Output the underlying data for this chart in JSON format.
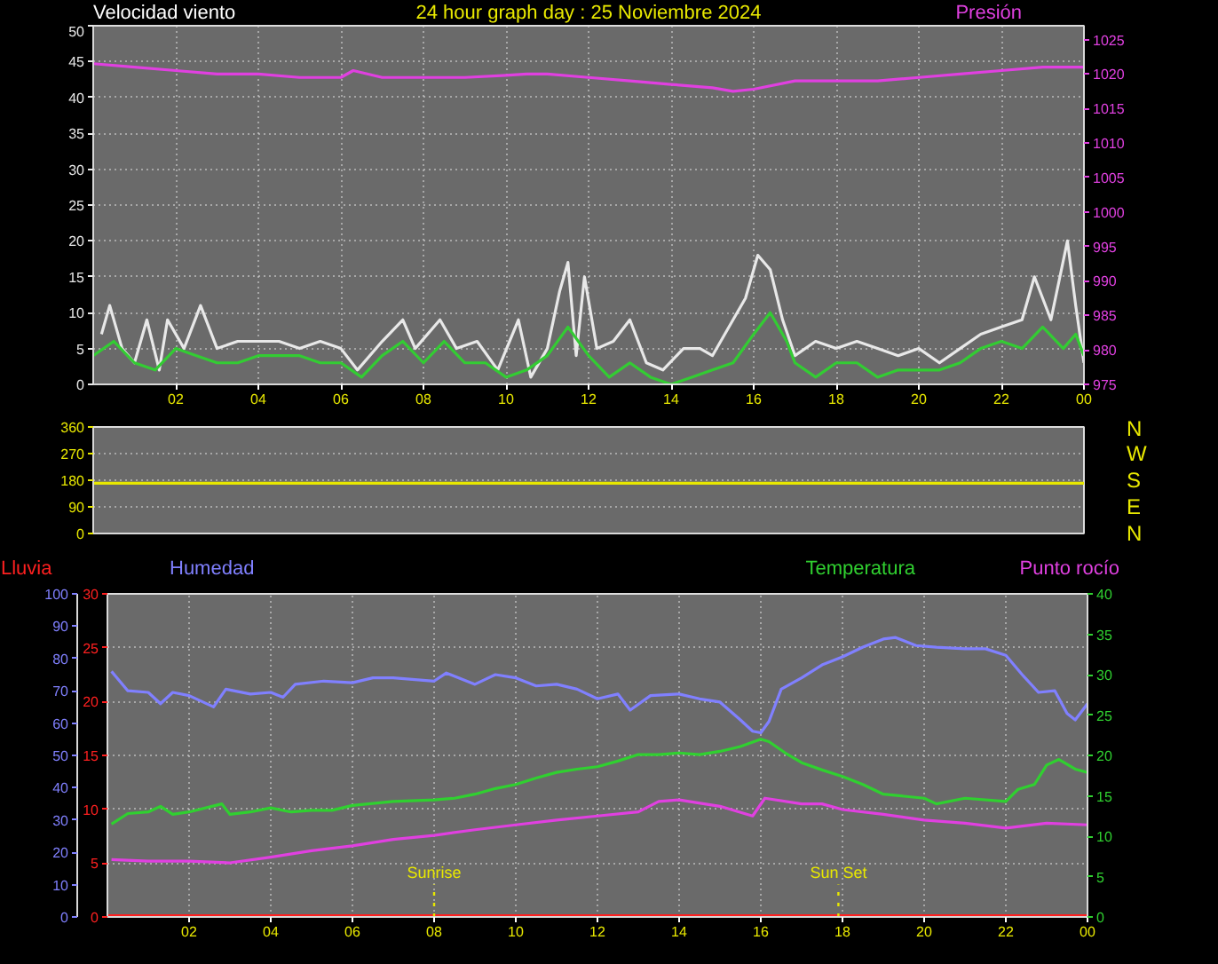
{
  "chart_data": [
    {
      "type": "line",
      "title": "24 hour graph day : 25 Noviembre 2024",
      "ylabel": "Velocidad viento",
      "y2label": "Presión",
      "xlim": [
        "2024-11-25T00:00",
        "2024-11-26T00:00"
      ],
      "xticks": [
        {
          "value": "2024-11-25T02:00",
          "label": "02"
        },
        {
          "value": "2024-11-25T04:00",
          "label": "04"
        },
        {
          "value": "2024-11-25T06:00",
          "label": "06"
        },
        {
          "value": "2024-11-25T08:00",
          "label": "08"
        },
        {
          "value": "2024-11-25T10:00",
          "label": "10"
        },
        {
          "value": "2024-11-25T12:00",
          "label": "12"
        },
        {
          "value": "2024-11-25T14:00",
          "label": "14"
        },
        {
          "value": "2024-11-25T16:00",
          "label": "16"
        },
        {
          "value": "2024-11-25T18:00",
          "label": "18"
        },
        {
          "value": "2024-11-25T20:00",
          "label": "20"
        },
        {
          "value": "2024-11-25T22:00",
          "label": "22"
        },
        {
          "value": "2024-11-26T00:00",
          "label": "00"
        }
      ],
      "ylim": [
        0,
        50
      ],
      "yticks": [
        0,
        5,
        10,
        15,
        20,
        25,
        30,
        35,
        40,
        45,
        50
      ],
      "y2lim": [
        975,
        1027
      ],
      "y2ticks": [
        975,
        980,
        985,
        990,
        995,
        1000,
        1005,
        1010,
        1015,
        1020,
        1025
      ],
      "grid": true,
      "series": [
        {
          "color": "#e8e8e8",
          "x": [
            "2024-11-25T00:12",
            "2024-11-25T00:24",
            "2024-11-25T00:42",
            "2024-11-25T01:00",
            "2024-11-25T01:18",
            "2024-11-25T01:36",
            "2024-11-25T01:48",
            "2024-11-25T02:12",
            "2024-11-25T02:36",
            "2024-11-25T03:00",
            "2024-11-25T03:30",
            "2024-11-25T04:00",
            "2024-11-25T04:30",
            "2024-11-25T05:00",
            "2024-11-25T05:30",
            "2024-11-25T06:00",
            "2024-11-25T06:24",
            "2024-11-25T07:00",
            "2024-11-25T07:30",
            "2024-11-25T07:48",
            "2024-11-25T08:24",
            "2024-11-25T08:48",
            "2024-11-25T09:18",
            "2024-11-25T09:48",
            "2024-11-25T10:18",
            "2024-11-25T10:36",
            "2024-11-25T11:00",
            "2024-11-25T11:18",
            "2024-11-25T11:30",
            "2024-11-25T11:42",
            "2024-11-25T11:54",
            "2024-11-25T12:12",
            "2024-11-25T12:36",
            "2024-11-25T13:00",
            "2024-11-25T13:24",
            "2024-11-25T13:48",
            "2024-11-25T14:18",
            "2024-11-25T14:42",
            "2024-11-25T15:00",
            "2024-11-25T15:30",
            "2024-11-25T15:48",
            "2024-11-25T16:06",
            "2024-11-25T16:24",
            "2024-11-25T16:42",
            "2024-11-25T17:00",
            "2024-11-25T17:30",
            "2024-11-25T18:00",
            "2024-11-25T18:30",
            "2024-11-25T19:00",
            "2024-11-25T19:30",
            "2024-11-25T20:00",
            "2024-11-25T20:30",
            "2024-11-25T21:00",
            "2024-11-25T21:30",
            "2024-11-25T22:00",
            "2024-11-25T22:30",
            "2024-11-25T22:48",
            "2024-11-25T23:12",
            "2024-11-25T23:36",
            "2024-11-25T23:48",
            "2024-11-26T00:00"
          ],
          "values": [
            7,
            11,
            5,
            3,
            9,
            2,
            9,
            5,
            11,
            5,
            6,
            6,
            6,
            5,
            6,
            5,
            2,
            6,
            9,
            5,
            9,
            5,
            6,
            2,
            9,
            1,
            5,
            13,
            17,
            4,
            15,
            5,
            6,
            9,
            3,
            2,
            5,
            5,
            4,
            9,
            12,
            18,
            16,
            9,
            4,
            6,
            5,
            6,
            5,
            4,
            5,
            3,
            5,
            7,
            8,
            9,
            15,
            9,
            20,
            11,
            3
          ]
        },
        {
          "color": "#33cc33",
          "x": [
            "2024-11-25T00:00",
            "2024-11-25T00:30",
            "2024-11-25T01:00",
            "2024-11-25T01:30",
            "2024-11-25T02:00",
            "2024-11-25T02:30",
            "2024-11-25T03:00",
            "2024-11-25T03:30",
            "2024-11-25T04:00",
            "2024-11-25T05:00",
            "2024-11-25T05:30",
            "2024-11-25T06:00",
            "2024-11-25T06:30",
            "2024-11-25T07:00",
            "2024-11-25T07:30",
            "2024-11-25T08:00",
            "2024-11-25T08:30",
            "2024-11-25T09:00",
            "2024-11-25T09:30",
            "2024-11-25T10:00",
            "2024-11-25T10:30",
            "2024-11-25T11:00",
            "2024-11-25T11:30",
            "2024-11-25T12:00",
            "2024-11-25T12:30",
            "2024-11-25T13:00",
            "2024-11-25T13:30",
            "2024-11-25T14:00",
            "2024-11-25T14:30",
            "2024-11-25T15:00",
            "2024-11-25T15:30",
            "2024-11-25T16:00",
            "2024-11-25T16:24",
            "2024-11-25T16:48",
            "2024-11-25T17:00",
            "2024-11-25T17:30",
            "2024-11-25T18:00",
            "2024-11-25T18:30",
            "2024-11-25T19:00",
            "2024-11-25T19:30",
            "2024-11-25T20:00",
            "2024-11-25T20:30",
            "2024-11-25T21:00",
            "2024-11-25T21:30",
            "2024-11-25T22:00",
            "2024-11-25T22:30",
            "2024-11-25T23:00",
            "2024-11-25T23:30",
            "2024-11-25T23:48",
            "2024-11-26T00:00"
          ],
          "values": [
            4,
            6,
            3,
            2,
            5,
            4,
            3,
            3,
            4,
            4,
            3,
            3,
            1,
            4,
            6,
            3,
            6,
            3,
            3,
            1,
            2,
            4,
            8,
            4,
            1,
            3,
            1,
            0,
            1,
            2,
            3,
            7,
            10,
            6,
            3,
            1,
            3,
            3,
            1,
            2,
            2,
            2,
            3,
            5,
            6,
            5,
            8,
            5,
            7,
            4
          ]
        },
        {
          "color": "#e040e0",
          "axis": "y2",
          "x": [
            "2024-11-25T00:00",
            "2024-11-25T01:00",
            "2024-11-25T02:00",
            "2024-11-25T03:00",
            "2024-11-25T04:00",
            "2024-11-25T05:00",
            "2024-11-25T06:00",
            "2024-11-25T06:18",
            "2024-11-25T07:00",
            "2024-11-25T08:00",
            "2024-11-25T09:00",
            "2024-11-25T10:00",
            "2024-11-25T10:30",
            "2024-11-25T11:00",
            "2024-11-25T12:00",
            "2024-11-25T13:00",
            "2024-11-25T14:00",
            "2024-11-25T15:00",
            "2024-11-25T15:30",
            "2024-11-25T16:00",
            "2024-11-25T17:00",
            "2024-11-25T18:00",
            "2024-11-25T19:00",
            "2024-11-25T20:00",
            "2024-11-25T21:00",
            "2024-11-25T22:00",
            "2024-11-25T23:00",
            "2024-11-26T00:00"
          ],
          "values": [
            1021.5,
            1021,
            1020.5,
            1020,
            1020,
            1019.5,
            1019.5,
            1020.5,
            1019.5,
            1019.5,
            1019.5,
            1019.8,
            1020,
            1020,
            1019.5,
            1019,
            1018.5,
            1018,
            1017.5,
            1017.8,
            1019,
            1019,
            1019,
            1019.5,
            1020,
            1020.5,
            1021,
            1021
          ]
        }
      ]
    },
    {
      "type": "line",
      "xlim": [
        "2024-11-25T00:00",
        "2024-11-26T00:00"
      ],
      "ylim": [
        0,
        360
      ],
      "yticks": [
        0,
        90,
        180,
        270,
        360
      ],
      "annotations": [
        "N",
        "W",
        "S",
        "E",
        "N"
      ],
      "tick_labels": "y",
      "grid": "y",
      "series": [
        {
          "color": "#e8e800",
          "x": [
            "2024-11-25T00:00",
            "2024-11-26T00:00"
          ],
          "values": [
            170,
            170
          ]
        }
      ]
    },
    {
      "type": "line",
      "xlim": [
        "2024-11-25T00:00",
        "2024-11-26T00:00"
      ],
      "xticks": [
        {
          "value": "2024-11-25T02:00",
          "label": "02"
        },
        {
          "value": "2024-11-25T04:00",
          "label": "04"
        },
        {
          "value": "2024-11-25T06:00",
          "label": "06"
        },
        {
          "value": "2024-11-25T08:00",
          "label": "08"
        },
        {
          "value": "2024-11-25T10:00",
          "label": "10"
        },
        {
          "value": "2024-11-25T12:00",
          "label": "12"
        },
        {
          "value": "2024-11-25T14:00",
          "label": "14"
        },
        {
          "value": "2024-11-25T16:00",
          "label": "16"
        },
        {
          "value": "2024-11-25T18:00",
          "label": "18"
        },
        {
          "value": "2024-11-25T20:00",
          "label": "20"
        },
        {
          "value": "2024-11-25T22:00",
          "label": "22"
        },
        {
          "value": "2024-11-26T00:00",
          "label": "00"
        }
      ],
      "ylim": [
        0,
        30
      ],
      "yticks": [
        0,
        5,
        10,
        15,
        20,
        25,
        30
      ],
      "y2lim": [
        0,
        100
      ],
      "y2ticks": [
        0,
        10,
        20,
        30,
        40,
        50,
        60,
        70,
        80,
        90,
        100
      ],
      "y3lim": [
        0,
        40
      ],
      "y3ticks": [
        0,
        5,
        10,
        15,
        20,
        25,
        30,
        35,
        40
      ],
      "grid": true,
      "ref_lines": [
        {
          "axis": "x",
          "value": "2024-11-25T08:00",
          "label": "Sunrise",
          "color": "#e8e800",
          "line_style": "dotted"
        },
        {
          "axis": "x",
          "value": "2024-11-25T17:54",
          "label": "Sun Set",
          "color": "#e8e800",
          "line_style": "dotted"
        }
      ],
      "series": [
        {
          "name": "Lluvia",
          "color": "#ff2020",
          "x": [
            "2024-11-25T00:00",
            "2024-11-26T00:00"
          ],
          "values": [
            0,
            0
          ]
        },
        {
          "name": "Humedad",
          "color": "#8080ff",
          "axis": "y2",
          "x": [
            "2024-11-25T00:06",
            "2024-11-25T00:30",
            "2024-11-25T01:00",
            "2024-11-25T01:18",
            "2024-11-25T01:36",
            "2024-11-25T02:00",
            "2024-11-25T02:36",
            "2024-11-25T02:54",
            "2024-11-25T03:30",
            "2024-11-25T04:00",
            "2024-11-25T04:18",
            "2024-11-25T04:36",
            "2024-11-25T05:18",
            "2024-11-25T06:00",
            "2024-11-25T06:30",
            "2024-11-25T07:00",
            "2024-11-25T08:00",
            "2024-11-25T08:18",
            "2024-11-25T09:00",
            "2024-11-25T09:30",
            "2024-11-25T10:00",
            "2024-11-25T10:30",
            "2024-11-25T11:00",
            "2024-11-25T11:30",
            "2024-11-25T12:00",
            "2024-11-25T12:30",
            "2024-11-25T12:48",
            "2024-11-25T13:18",
            "2024-11-25T14:00",
            "2024-11-25T14:30",
            "2024-11-25T15:00",
            "2024-11-25T15:30",
            "2024-11-25T15:48",
            "2024-11-25T16:00",
            "2024-11-25T16:12",
            "2024-11-25T16:30",
            "2024-11-25T17:00",
            "2024-11-25T17:30",
            "2024-11-25T18:00",
            "2024-11-25T18:30",
            "2024-11-25T19:00",
            "2024-11-25T19:18",
            "2024-11-25T19:48",
            "2024-11-25T20:18",
            "2024-11-25T21:00",
            "2024-11-25T21:30",
            "2024-11-25T22:00",
            "2024-11-25T22:24",
            "2024-11-25T22:48",
            "2024-11-25T23:12",
            "2024-11-25T23:30",
            "2024-11-25T23:42",
            "2024-11-26T00:00"
          ],
          "values": [
            76,
            70,
            69.5,
            66,
            69.5,
            68.5,
            65,
            70.5,
            69,
            69.5,
            68,
            72,
            73,
            72.5,
            74,
            74,
            73,
            75.5,
            72,
            75,
            74,
            71.5,
            72,
            70.5,
            67.5,
            69,
            64,
            68.5,
            69,
            67.5,
            66.5,
            61,
            57.5,
            57,
            60.5,
            70.5,
            74,
            78,
            80.5,
            83.5,
            86,
            86.5,
            84,
            83.5,
            83,
            83,
            81,
            75,
            69.5,
            70,
            63,
            61,
            66
          ]
        },
        {
          "name": "Temperatura",
          "color": "#30d030",
          "axis": "y3",
          "x": [
            "2024-11-25T00:06",
            "2024-11-25T00:30",
            "2024-11-25T01:00",
            "2024-11-25T01:18",
            "2024-11-25T01:36",
            "2024-11-25T02:00",
            "2024-11-25T02:48",
            "2024-11-25T03:00",
            "2024-11-25T03:30",
            "2024-11-25T04:00",
            "2024-11-25T04:30",
            "2024-11-25T05:00",
            "2024-11-25T05:30",
            "2024-11-25T06:00",
            "2024-11-25T07:00",
            "2024-11-25T08:00",
            "2024-11-25T08:30",
            "2024-11-25T09:00",
            "2024-11-25T09:30",
            "2024-11-25T10:00",
            "2024-11-25T10:30",
            "2024-11-25T11:00",
            "2024-11-25T11:30",
            "2024-11-25T12:00",
            "2024-11-25T12:30",
            "2024-11-25T13:00",
            "2024-11-25T13:30",
            "2024-11-25T14:00",
            "2024-11-25T14:30",
            "2024-11-25T15:00",
            "2024-11-25T15:30",
            "2024-11-25T16:00",
            "2024-11-25T16:12",
            "2024-11-25T16:36",
            "2024-11-25T17:00",
            "2024-11-25T17:30",
            "2024-11-25T18:00",
            "2024-11-25T18:30",
            "2024-11-25T19:00",
            "2024-11-25T20:00",
            "2024-11-25T20:18",
            "2024-11-25T21:00",
            "2024-11-25T22:00",
            "2024-11-25T22:18",
            "2024-11-25T22:42",
            "2024-11-25T23:00",
            "2024-11-25T23:18",
            "2024-11-25T23:42",
            "2024-11-26T00:00"
          ],
          "values": [
            11.5,
            12.8,
            13,
            13.7,
            12.7,
            13,
            14,
            12.7,
            13,
            13.5,
            13,
            13.2,
            13.2,
            13.8,
            14.3,
            14.5,
            14.7,
            15.2,
            15.9,
            16.4,
            17.2,
            17.9,
            18.3,
            18.6,
            19.3,
            20.1,
            20.1,
            20.3,
            20.1,
            20.5,
            21.1,
            22,
            21.7,
            20.3,
            19.1,
            18.2,
            17.4,
            16.4,
            15.2,
            14.7,
            14,
            14.7,
            14.3,
            15.8,
            16.4,
            18.8,
            19.5,
            18.3,
            17.9
          ]
        },
        {
          "name": "Punto rocío",
          "color": "#e040e0",
          "axis": "y3",
          "x": [
            "2024-11-25T00:06",
            "2024-11-25T01:00",
            "2024-11-25T02:00",
            "2024-11-25T03:00",
            "2024-11-25T04:00",
            "2024-11-25T05:00",
            "2024-11-25T06:00",
            "2024-11-25T07:00",
            "2024-11-25T08:00",
            "2024-11-25T09:00",
            "2024-11-25T10:00",
            "2024-11-25T11:00",
            "2024-11-25T12:00",
            "2024-11-25T13:00",
            "2024-11-25T13:30",
            "2024-11-25T14:00",
            "2024-11-25T15:00",
            "2024-11-25T15:48",
            "2024-11-25T16:06",
            "2024-11-25T17:00",
            "2024-11-25T17:30",
            "2024-11-25T18:00",
            "2024-11-25T19:00",
            "2024-11-25T20:00",
            "2024-11-25T21:00",
            "2024-11-25T22:00",
            "2024-11-25T23:00",
            "2024-11-26T00:00"
          ],
          "values": [
            7.1,
            6.9,
            6.9,
            6.7,
            7.4,
            8.2,
            8.8,
            9.6,
            10.1,
            10.8,
            11.4,
            12,
            12.5,
            13,
            14.3,
            14.5,
            13.7,
            12.5,
            14.7,
            14,
            14,
            13.3,
            12.7,
            12,
            11.6,
            11,
            11.6,
            11.4
          ]
        }
      ]
    }
  ]
}
